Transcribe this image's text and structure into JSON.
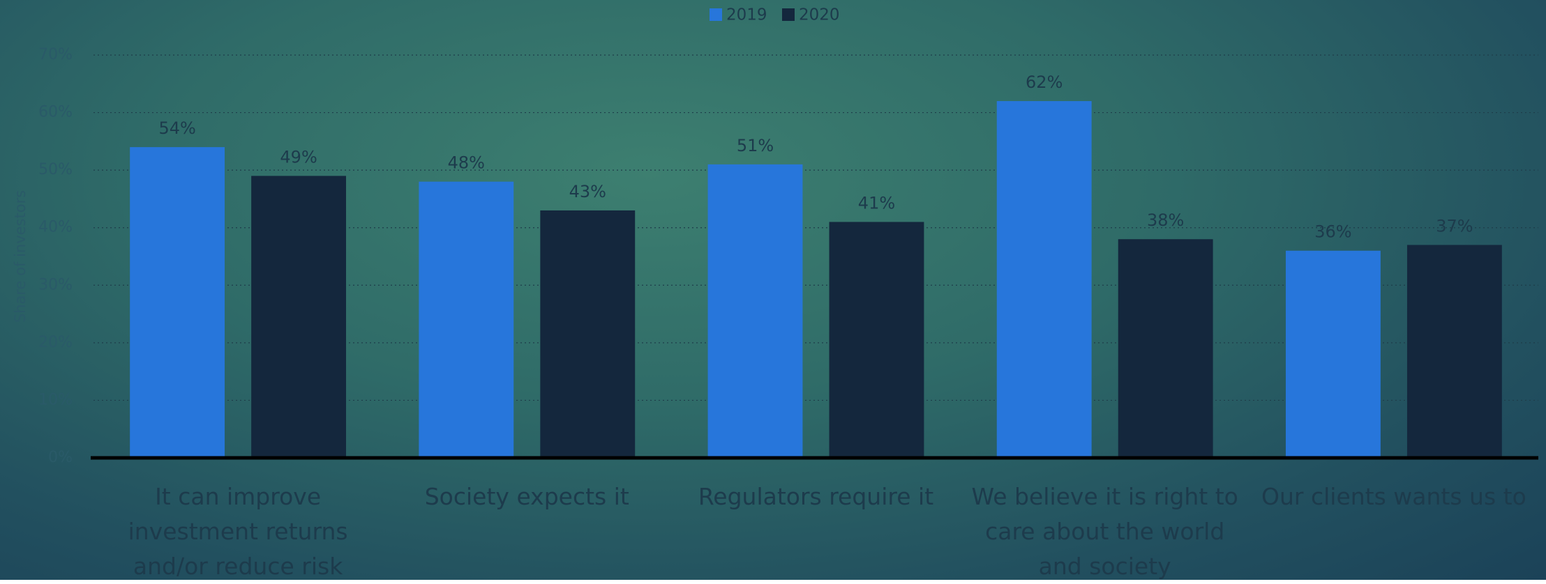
{
  "chart_data": {
    "type": "bar",
    "y_label": "Share of investors",
    "categories": [
      "It can improve investment returns and/or reduce risk",
      "Society expects it",
      "Regulators require it",
      "We believe it is right to care about the world and society",
      "Our clients wants us to"
    ],
    "series": [
      {
        "name": "2019",
        "color": "#2776db",
        "values": [
          54,
          48,
          51,
          62,
          36
        ],
        "value_labels": [
          "54%",
          "48%",
          "51%",
          "62%",
          "36%"
        ]
      },
      {
        "name": "2020",
        "color": "#14273d",
        "values": [
          49,
          43,
          41,
          38,
          37
        ],
        "value_labels": [
          "49%",
          "43%",
          "41%",
          "38%",
          "37%"
        ]
      }
    ],
    "ylim": [
      0,
      70
    ],
    "yticks": [
      {
        "value": 0,
        "label": "0%"
      },
      {
        "value": 10,
        "label": "10%"
      },
      {
        "value": 20,
        "label": "20%"
      },
      {
        "value": 30,
        "label": "30%"
      },
      {
        "value": 40,
        "label": "40%"
      },
      {
        "value": 50,
        "label": "50%"
      },
      {
        "value": 60,
        "label": "60%"
      },
      {
        "value": 70,
        "label": "70%"
      }
    ],
    "grid": true,
    "legend": "top"
  }
}
